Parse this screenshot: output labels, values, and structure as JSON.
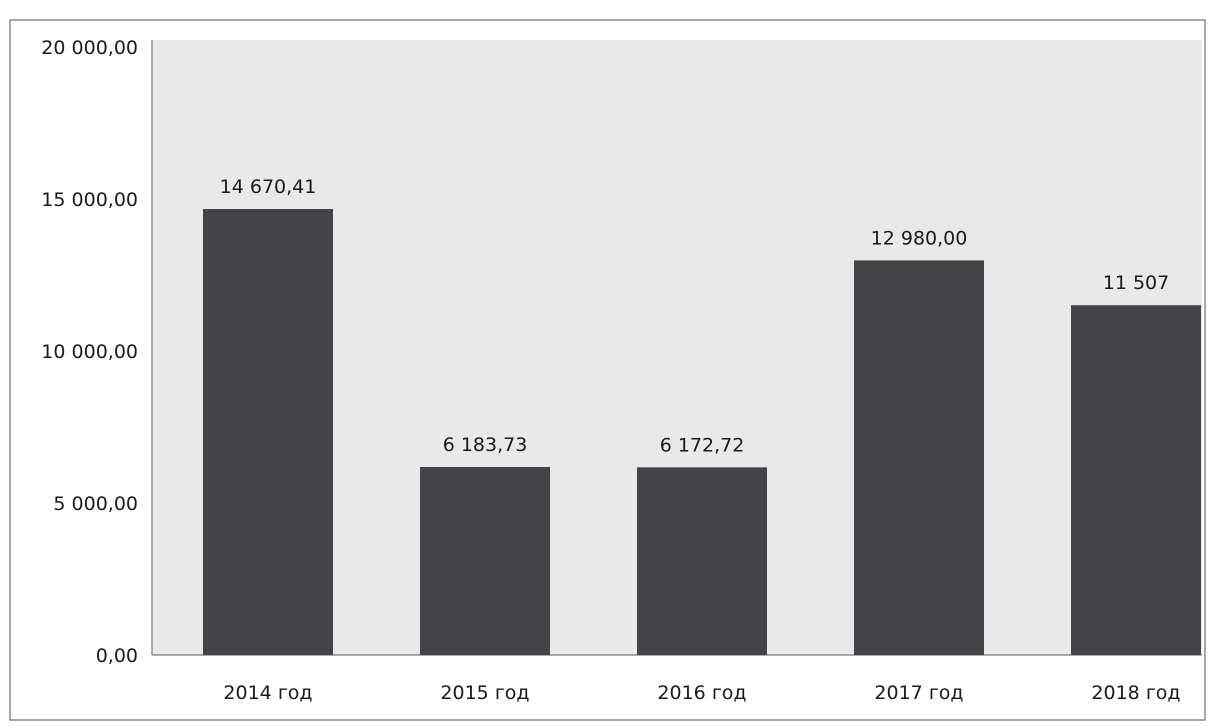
{
  "chart_data": {
    "type": "bar",
    "categories": [
      "2014 год",
      "2015 год",
      "2016 год",
      "2017 год",
      "2018 год"
    ],
    "values": [
      14670.41,
      6183.73,
      6172.72,
      12980.0,
      11507
    ],
    "data_labels": [
      "14 670,41",
      "6 183,73",
      "6 172,72",
      "12 980,00",
      "11 507"
    ],
    "y_ticks": [
      0,
      5000,
      10000,
      15000,
      20000
    ],
    "y_tick_labels": [
      "0,00",
      "5 000,00",
      "10 000,00",
      "15 000,00",
      "20 000,00"
    ],
    "ylim": [
      0,
      20000
    ],
    "grid": false,
    "legend": "none",
    "colors": {
      "bar": "#444448",
      "plot_background": "#e9e9e9"
    }
  }
}
